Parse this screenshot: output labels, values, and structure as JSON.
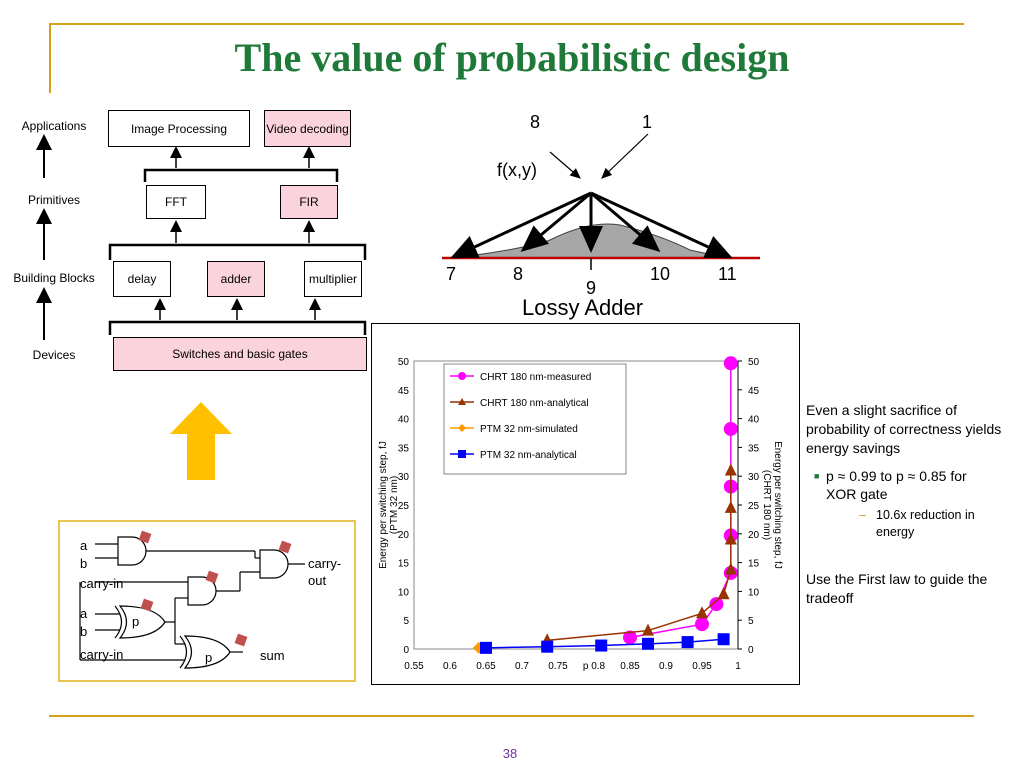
{
  "title": "The value of probabilistic design",
  "page_number": "38",
  "accent_color": "#1f7a3a",
  "rule_color": "#d4a21a",
  "hierarchy": {
    "levels": [
      "Applications",
      "Primitives",
      "Building Blocks",
      "Devices"
    ],
    "applications": [
      "Image Processing",
      "Video decoding"
    ],
    "primitives": [
      "FFT",
      "FIR"
    ],
    "blocks": [
      "delay",
      "adder",
      "multiplier"
    ],
    "devices": "Switches and basic gates"
  },
  "lossy_adder": {
    "inputs": [
      "8",
      "1"
    ],
    "func": "f(x,y)",
    "outputs": [
      "7",
      "8",
      "9",
      "10",
      "11"
    ],
    "caption": "Lossy Adder"
  },
  "circuit": {
    "labels": [
      "a",
      "b",
      "carry-in",
      "a",
      "b",
      "carry-in",
      "p",
      "p",
      "carry-",
      "out",
      "sum"
    ]
  },
  "chart_data": {
    "type": "scatter",
    "y_ticks": [
      "50",
      "45",
      "40",
      "35",
      "30",
      "25",
      "20",
      "15",
      "10",
      "5",
      "0"
    ],
    "x_ticks": [
      "0.55",
      "0.6",
      "0.65",
      "0.7",
      "0.75",
      "p 0.8",
      "0.85",
      "0.9",
      "0.95",
      "1"
    ],
    "ylabel_left": [
      "Energy per switching step, fJ",
      "(PTM 32 nm)"
    ],
    "ylabel_right": [
      "Energy per switching step, fJ",
      "(CHRT 180 nm)"
    ],
    "xlim": [
      0.55,
      1.0
    ],
    "ylim": [
      0,
      50
    ],
    "legend_position": "top-left",
    "series": [
      {
        "name": "CHRT 180 nm-measured",
        "color": "#ff00ff",
        "marker": "circle",
        "x": [
          0.85,
          0.95,
          0.97,
          0.99,
          0.99,
          0.99,
          0.99,
          0.99
        ],
        "y": [
          2,
          4.3,
          7.8,
          13.2,
          19.7,
          28.2,
          38.2,
          49.6
        ]
      },
      {
        "name": "CHRT 180 nm-analytical",
        "color": "#993300",
        "marker": "triangle",
        "x": [
          0.735,
          0.875,
          0.95,
          0.98,
          0.99,
          0.99,
          0.99,
          0.99
        ],
        "y": [
          1.5,
          3.2,
          6.2,
          9.5,
          13.8,
          19,
          24.5,
          31
        ]
      },
      {
        "name": "PTM 32 nm-simulated",
        "color": "#ff9900",
        "marker": "diamond",
        "x": [
          0.64
        ],
        "y": [
          0.2
        ]
      },
      {
        "name": "PTM 32 nm-analytical",
        "color": "#0000ff",
        "marker": "square",
        "x": [
          0.65,
          0.735,
          0.81,
          0.875,
          0.93,
          0.98
        ],
        "y": [
          0.2,
          0.4,
          0.6,
          0.9,
          1.2,
          1.7
        ]
      }
    ]
  },
  "notes": {
    "main": "Even a slight sacrifice of probability of correctness yields energy savings",
    "bullet": "p ≈ 0.99 to p ≈ 0.85 for XOR gate",
    "sub": "10.6x reduction in energy",
    "tradeoff": "Use the First law to guide the tradeoff"
  }
}
